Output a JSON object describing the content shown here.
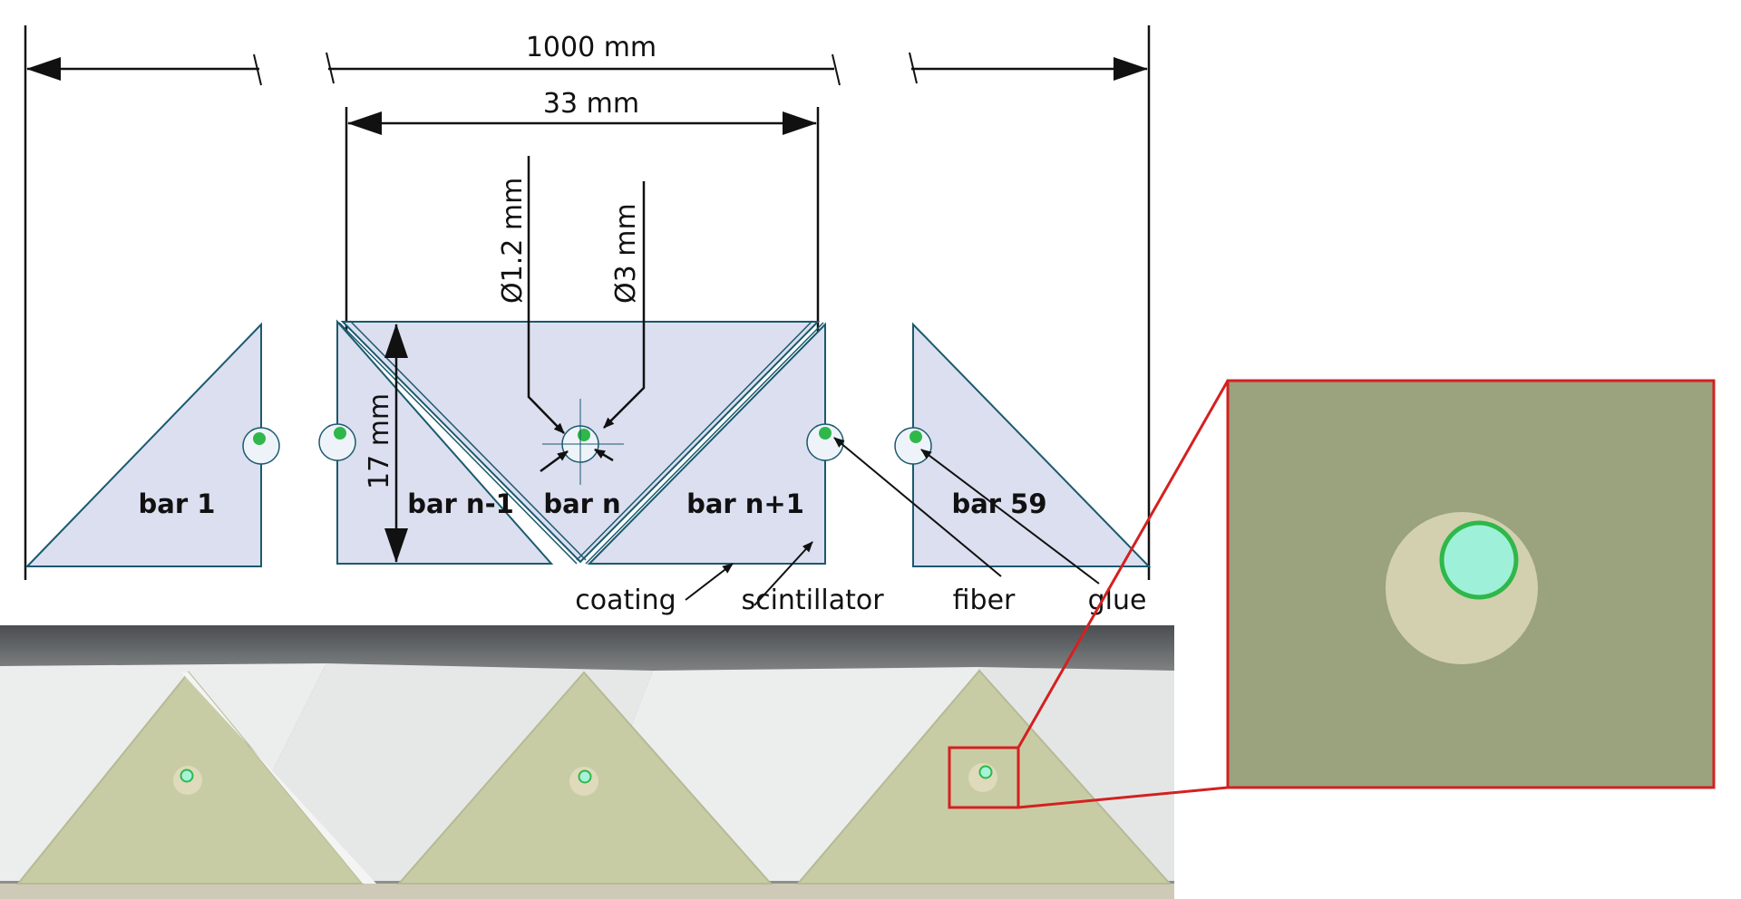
{
  "dimensions": {
    "total_width": "1000 mm",
    "bar_pitch": "33 mm",
    "fiber_diameter": "Ø1.2 mm",
    "hole_diameter": "Ø3 mm",
    "bar_height": "17 mm"
  },
  "bars": {
    "first": "bar 1",
    "prev": "bar n-1",
    "current": "bar n",
    "next": "bar n+1",
    "last": "bar 59"
  },
  "callouts": {
    "coating": "coating",
    "scintillator": "scintillator",
    "fiber": "fiber",
    "glue": "glue"
  },
  "colors": {
    "scintillator_fill": "#dcdff0",
    "fiber_green": "#2fb84a",
    "fiber_core": "#9ff0d8",
    "photo_face": "#c8cca4",
    "zoom_frame": "#d42020",
    "zoom_background": "#9aa27e"
  },
  "icons": {
    "photo": "scintillator-bars-photo",
    "zoom": "fiber-closeup-zoom"
  }
}
